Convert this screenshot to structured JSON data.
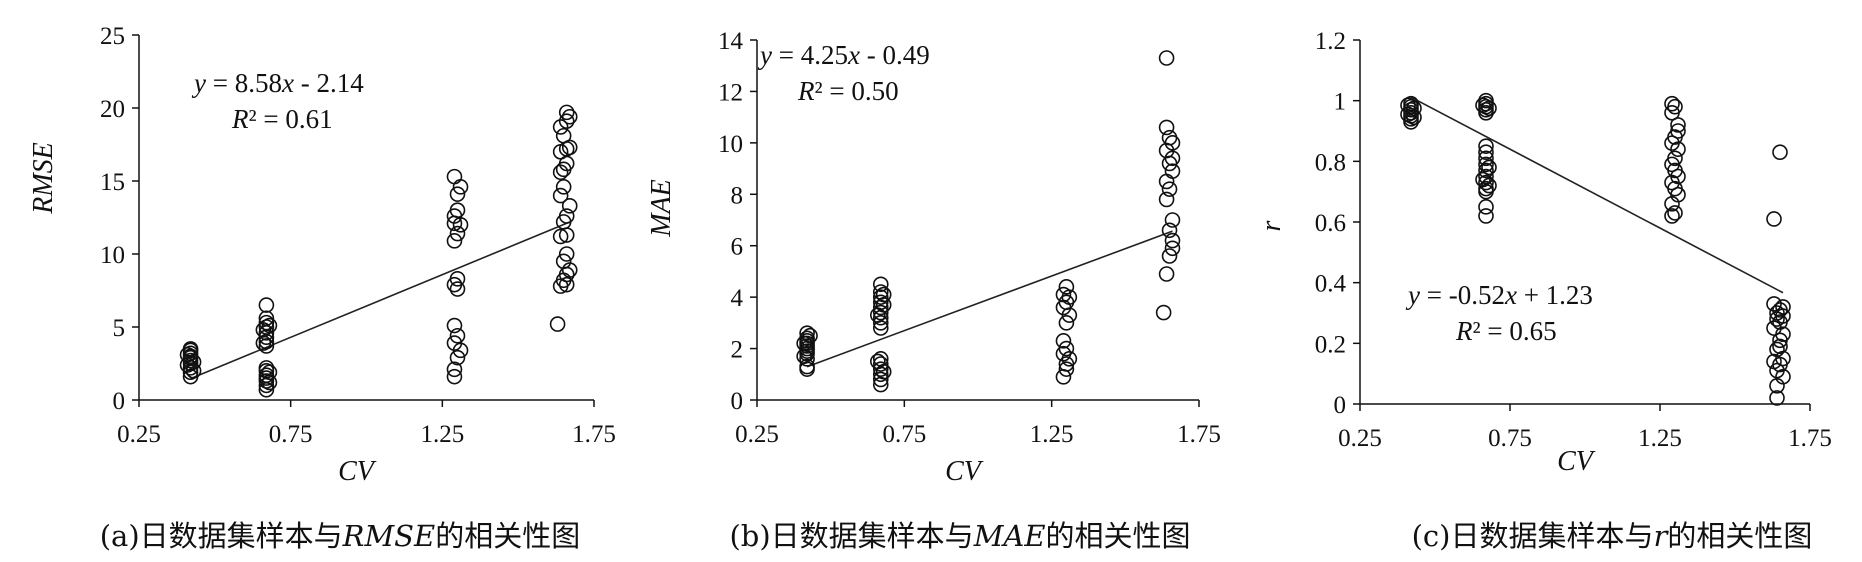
{
  "chart_data": [
    {
      "type": "scatter",
      "xlabel": "CV",
      "ylabel": "RMSE",
      "xlim": [
        0.25,
        1.75
      ],
      "ylim": [
        0,
        25
      ],
      "xticks": [
        "0.25",
        "0.75",
        "1.25",
        "1.75"
      ],
      "xtick_values": [
        0.25,
        0.75,
        1.25,
        1.75
      ],
      "yticks": [
        "0",
        "5",
        "10",
        "15",
        "20",
        "25"
      ],
      "ytick_values": [
        0,
        5,
        10,
        15,
        20,
        25
      ],
      "equation": {
        "y": "y",
        "eq": " = 8.58",
        "x": "x",
        "rest": " - 2.14"
      },
      "r2": {
        "r": "R",
        "rest": "² = 0.61"
      },
      "fit": {
        "slope": 8.58,
        "intercept": -2.14,
        "x_range": [
          0.42,
          1.67
        ]
      },
      "caption": {
        "prefix": "(a)日数据集样本与",
        "var": "RMSE",
        "suffix": "的相关性图"
      },
      "points": [
        [
          0.42,
          1.6
        ],
        [
          0.42,
          1.9
        ],
        [
          0.42,
          2.2
        ],
        [
          0.42,
          2.5
        ],
        [
          0.42,
          2.7
        ],
        [
          0.42,
          2.9
        ],
        [
          0.42,
          3.0
        ],
        [
          0.42,
          3.2
        ],
        [
          0.42,
          3.4
        ],
        [
          0.42,
          3.5
        ],
        [
          0.41,
          2.4
        ],
        [
          0.43,
          2.6
        ],
        [
          0.41,
          3.1
        ],
        [
          0.43,
          2.0
        ],
        [
          0.67,
          0.7
        ],
        [
          0.67,
          1.0
        ],
        [
          0.67,
          1.3
        ],
        [
          0.67,
          1.5
        ],
        [
          0.67,
          1.7
        ],
        [
          0.67,
          2.0
        ],
        [
          0.67,
          2.2
        ],
        [
          0.67,
          3.7
        ],
        [
          0.67,
          4.0
        ],
        [
          0.67,
          4.3
        ],
        [
          0.67,
          4.6
        ],
        [
          0.67,
          5.0
        ],
        [
          0.67,
          5.3
        ],
        [
          0.67,
          5.6
        ],
        [
          0.67,
          6.5
        ],
        [
          0.66,
          4.8
        ],
        [
          0.68,
          1.9
        ],
        [
          0.68,
          5.1
        ],
        [
          0.66,
          3.9
        ],
        [
          0.68,
          1.2
        ],
        [
          1.29,
          1.6
        ],
        [
          1.29,
          2.1
        ],
        [
          1.3,
          2.9
        ],
        [
          1.31,
          3.4
        ],
        [
          1.29,
          3.9
        ],
        [
          1.3,
          4.4
        ],
        [
          1.29,
          5.1
        ],
        [
          1.3,
          7.6
        ],
        [
          1.29,
          7.9
        ],
        [
          1.3,
          8.3
        ],
        [
          1.29,
          10.9
        ],
        [
          1.3,
          11.4
        ],
        [
          1.29,
          12.1
        ],
        [
          1.31,
          12.0
        ],
        [
          1.29,
          12.6
        ],
        [
          1.3,
          13.0
        ],
        [
          1.3,
          14.1
        ],
        [
          1.31,
          14.6
        ],
        [
          1.29,
          15.3
        ],
        [
          1.63,
          5.2
        ],
        [
          1.64,
          7.8
        ],
        [
          1.66,
          7.9
        ],
        [
          1.65,
          8.2
        ],
        [
          1.66,
          8.6
        ],
        [
          1.67,
          8.9
        ],
        [
          1.65,
          9.5
        ],
        [
          1.66,
          10.0
        ],
        [
          1.64,
          11.2
        ],
        [
          1.66,
          11.3
        ],
        [
          1.65,
          12.2
        ],
        [
          1.66,
          12.6
        ],
        [
          1.67,
          13.3
        ],
        [
          1.64,
          14.0
        ],
        [
          1.65,
          14.6
        ],
        [
          1.64,
          15.6
        ],
        [
          1.65,
          15.8
        ],
        [
          1.66,
          16.2
        ],
        [
          1.64,
          17.0
        ],
        [
          1.66,
          17.2
        ],
        [
          1.67,
          17.3
        ],
        [
          1.65,
          18.1
        ],
        [
          1.64,
          18.7
        ],
        [
          1.66,
          19.1
        ],
        [
          1.67,
          19.4
        ],
        [
          1.66,
          19.7
        ]
      ]
    },
    {
      "type": "scatter",
      "xlabel": "CV",
      "ylabel": "MAE",
      "xlim": [
        0.25,
        1.75
      ],
      "ylim": [
        0,
        14
      ],
      "xticks": [
        "0.25",
        "0.75",
        "1.25",
        "1.75"
      ],
      "xtick_values": [
        0.25,
        0.75,
        1.25,
        1.75
      ],
      "yticks": [
        "0",
        "2",
        "4",
        "6",
        "8",
        "10",
        "12",
        "14"
      ],
      "ytick_values": [
        0,
        2,
        4,
        6,
        8,
        10,
        12,
        14
      ],
      "equation": {
        "y": "y",
        "eq": " = 4.25",
        "x": "x",
        "rest": " - 0.49"
      },
      "r2": {
        "r": "R",
        "rest": "² = 0.50"
      },
      "fit": {
        "slope": 4.25,
        "intercept": -0.49,
        "x_range": [
          0.42,
          1.66
        ]
      },
      "caption": {
        "prefix": "(b)日数据集样本与",
        "var": "MAE",
        "suffix": "的相关性图"
      },
      "points": [
        [
          0.42,
          1.2
        ],
        [
          0.42,
          1.3
        ],
        [
          0.42,
          1.6
        ],
        [
          0.42,
          1.8
        ],
        [
          0.42,
          1.9
        ],
        [
          0.42,
          2.0
        ],
        [
          0.42,
          2.1
        ],
        [
          0.42,
          2.2
        ],
        [
          0.42,
          2.3
        ],
        [
          0.42,
          2.4
        ],
        [
          0.42,
          2.6
        ],
        [
          0.41,
          1.7
        ],
        [
          0.43,
          2.5
        ],
        [
          0.41,
          2.2
        ],
        [
          0.67,
          0.6
        ],
        [
          0.67,
          0.8
        ],
        [
          0.67,
          1.0
        ],
        [
          0.67,
          1.2
        ],
        [
          0.67,
          1.4
        ],
        [
          0.67,
          1.6
        ],
        [
          0.67,
          2.8
        ],
        [
          0.67,
          3.0
        ],
        [
          0.67,
          3.2
        ],
        [
          0.67,
          3.4
        ],
        [
          0.67,
          3.6
        ],
        [
          0.67,
          3.8
        ],
        [
          0.67,
          4.0
        ],
        [
          0.67,
          4.2
        ],
        [
          0.67,
          4.5
        ],
        [
          0.68,
          1.1
        ],
        [
          0.66,
          3.3
        ],
        [
          0.68,
          3.7
        ],
        [
          0.66,
          1.5
        ],
        [
          0.68,
          4.1
        ],
        [
          1.29,
          0.9
        ],
        [
          1.3,
          1.2
        ],
        [
          1.3,
          1.4
        ],
        [
          1.31,
          1.6
        ],
        [
          1.29,
          1.8
        ],
        [
          1.3,
          2.0
        ],
        [
          1.29,
          2.3
        ],
        [
          1.3,
          3.0
        ],
        [
          1.31,
          3.3
        ],
        [
          1.29,
          3.6
        ],
        [
          1.3,
          3.8
        ],
        [
          1.29,
          4.1
        ],
        [
          1.31,
          4.0
        ],
        [
          1.3,
          4.4
        ],
        [
          1.63,
          3.4
        ],
        [
          1.64,
          4.9
        ],
        [
          1.65,
          5.6
        ],
        [
          1.66,
          5.9
        ],
        [
          1.66,
          6.2
        ],
        [
          1.65,
          6.6
        ],
        [
          1.66,
          7.0
        ],
        [
          1.64,
          7.8
        ],
        [
          1.65,
          8.2
        ],
        [
          1.64,
          8.5
        ],
        [
          1.66,
          8.9
        ],
        [
          1.65,
          9.2
        ],
        [
          1.66,
          9.4
        ],
        [
          1.64,
          9.7
        ],
        [
          1.66,
          10.0
        ],
        [
          1.65,
          10.2
        ],
        [
          1.64,
          10.6
        ],
        [
          1.64,
          13.3
        ]
      ]
    },
    {
      "type": "scatter",
      "xlabel": "CV",
      "ylabel": "r",
      "xlim": [
        0.25,
        1.75
      ],
      "ylim": [
        0,
        1.2
      ],
      "xticks": [
        "0.25",
        "0.75",
        "1.25",
        "1.75"
      ],
      "xtick_values": [
        0.25,
        0.75,
        1.25,
        1.75
      ],
      "yticks": [
        "0",
        "0.2",
        "0.4",
        "0.6",
        "0.8",
        "1",
        "1.2"
      ],
      "ytick_values": [
        0,
        0.2,
        0.4,
        0.6,
        0.8,
        1.0,
        1.2
      ],
      "equation": {
        "y": "y",
        "eq": " = -0.52",
        "x": "x",
        "rest": " + 1.23"
      },
      "r2": {
        "r": "R",
        "rest": "² = 0.65"
      },
      "fit": {
        "slope": -0.52,
        "intercept": 1.23,
        "x_range": [
          0.42,
          1.66
        ]
      },
      "caption": {
        "prefix": "(c)日数据集样本与",
        "var": "r",
        "suffix": "的相关性图"
      },
      "points": [
        [
          0.42,
          0.93
        ],
        [
          0.42,
          0.94
        ],
        [
          0.42,
          0.95
        ],
        [
          0.42,
          0.96
        ],
        [
          0.42,
          0.97
        ],
        [
          0.42,
          0.98
        ],
        [
          0.42,
          0.99
        ],
        [
          0.41,
          0.955
        ],
        [
          0.43,
          0.975
        ],
        [
          0.41,
          0.985
        ],
        [
          0.43,
          0.945
        ],
        [
          0.67,
          0.62
        ],
        [
          0.67,
          0.65
        ],
        [
          0.67,
          0.7
        ],
        [
          0.67,
          0.71
        ],
        [
          0.67,
          0.73
        ],
        [
          0.67,
          0.75
        ],
        [
          0.67,
          0.77
        ],
        [
          0.67,
          0.79
        ],
        [
          0.67,
          0.81
        ],
        [
          0.67,
          0.83
        ],
        [
          0.67,
          0.85
        ],
        [
          0.67,
          0.96
        ],
        [
          0.67,
          0.97
        ],
        [
          0.67,
          0.98
        ],
        [
          0.67,
          0.99
        ],
        [
          0.67,
          1.0
        ],
        [
          0.68,
          0.78
        ],
        [
          0.66,
          0.74
        ],
        [
          0.68,
          0.975
        ],
        [
          0.66,
          0.985
        ],
        [
          0.68,
          0.72
        ],
        [
          1.29,
          0.62
        ],
        [
          1.3,
          0.63
        ],
        [
          1.29,
          0.66
        ],
        [
          1.31,
          0.69
        ],
        [
          1.3,
          0.71
        ],
        [
          1.29,
          0.73
        ],
        [
          1.31,
          0.75
        ],
        [
          1.3,
          0.77
        ],
        [
          1.29,
          0.79
        ],
        [
          1.3,
          0.81
        ],
        [
          1.31,
          0.84
        ],
        [
          1.29,
          0.86
        ],
        [
          1.3,
          0.88
        ],
        [
          1.31,
          0.9
        ],
        [
          1.31,
          0.92
        ],
        [
          1.29,
          0.96
        ],
        [
          1.3,
          0.98
        ],
        [
          1.29,
          0.99
        ],
        [
          1.63,
          0.61
        ],
        [
          1.65,
          0.83
        ],
        [
          1.64,
          0.02
        ],
        [
          1.64,
          0.06
        ],
        [
          1.66,
          0.09
        ],
        [
          1.64,
          0.11
        ],
        [
          1.65,
          0.13
        ],
        [
          1.63,
          0.14
        ],
        [
          1.66,
          0.15
        ],
        [
          1.64,
          0.18
        ],
        [
          1.65,
          0.21
        ],
        [
          1.66,
          0.23
        ],
        [
          1.63,
          0.25
        ],
        [
          1.65,
          0.27
        ],
        [
          1.66,
          0.29
        ],
        [
          1.64,
          0.3
        ],
        [
          1.65,
          0.31
        ],
        [
          1.66,
          0.32
        ],
        [
          1.63,
          0.33
        ],
        [
          1.65,
          0.19
        ],
        [
          1.64,
          0.28
        ]
      ]
    }
  ]
}
